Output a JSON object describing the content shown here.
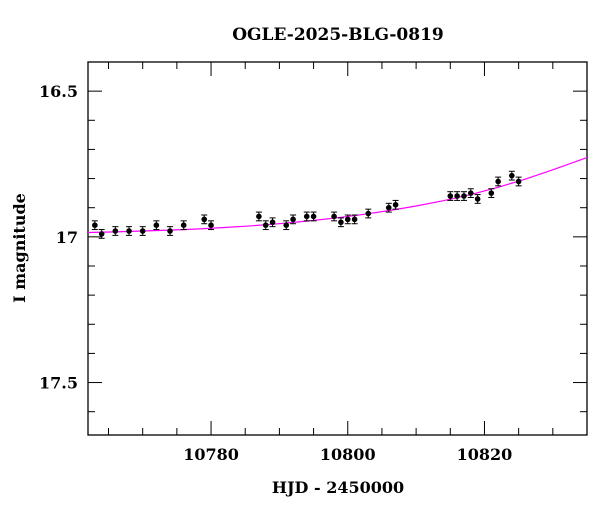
{
  "chart_data": {
    "type": "scatter",
    "title": "OGLE-2025-BLG-0819",
    "xlabel": "HJD - 2450000",
    "ylabel": "I magnitude",
    "xlim": [
      10762,
      10835
    ],
    "ylim": [
      17.68,
      16.4
    ],
    "y_inverted": true,
    "grid": false,
    "xticks": [
      10780,
      10800,
      10820
    ],
    "xtick_labels": [
      "10780",
      "10800",
      "10820"
    ],
    "yticks": [
      16.5,
      17.0,
      17.5
    ],
    "ytick_labels": [
      "16.5",
      "17",
      "17.5"
    ],
    "points": {
      "x": [
        10763.0,
        10764.0,
        10766.0,
        10768.0,
        10770.0,
        10772.0,
        10774.0,
        10776.0,
        10779.0,
        10780.0,
        10787.0,
        10788.0,
        10789.0,
        10791.0,
        10792.0,
        10794.0,
        10795.0,
        10798.0,
        10799.0,
        10800.0,
        10801.0,
        10803.0,
        10806.0,
        10807.0,
        10815.0,
        10816.0,
        10817.0,
        10818.0,
        10819.0,
        10821.0,
        10822.0,
        10824.0,
        10825.0
      ],
      "y": [
        16.96,
        16.99,
        16.98,
        16.98,
        16.98,
        16.96,
        16.98,
        16.96,
        16.94,
        16.96,
        16.93,
        16.96,
        16.95,
        16.96,
        16.94,
        16.93,
        16.93,
        16.93,
        16.95,
        16.94,
        16.94,
        16.92,
        16.9,
        16.89,
        16.86,
        16.86,
        16.86,
        16.85,
        16.87,
        16.85,
        16.81,
        16.79,
        16.81
      ],
      "err": [
        0.015,
        0.015,
        0.015,
        0.015,
        0.015,
        0.015,
        0.015,
        0.015,
        0.015,
        0.015,
        0.015,
        0.015,
        0.015,
        0.015,
        0.015,
        0.015,
        0.015,
        0.015,
        0.015,
        0.015,
        0.015,
        0.015,
        0.015,
        0.015,
        0.015,
        0.015,
        0.015,
        0.015,
        0.015,
        0.015,
        0.015,
        0.015,
        0.015
      ],
      "color": "#000000"
    },
    "model": {
      "color": "#ff00ff",
      "x": [
        10762,
        10766,
        10770,
        10774,
        10778,
        10782,
        10786,
        10790,
        10794,
        10798,
        10802,
        10806,
        10810,
        10814,
        10818,
        10822,
        10826,
        10830,
        10835
      ],
      "y": [
        16.985,
        16.983,
        16.98,
        16.977,
        16.973,
        16.968,
        16.962,
        16.955,
        16.946,
        16.936,
        16.924,
        16.91,
        16.894,
        16.876,
        16.855,
        16.83,
        16.802,
        16.77,
        16.728
      ]
    }
  }
}
